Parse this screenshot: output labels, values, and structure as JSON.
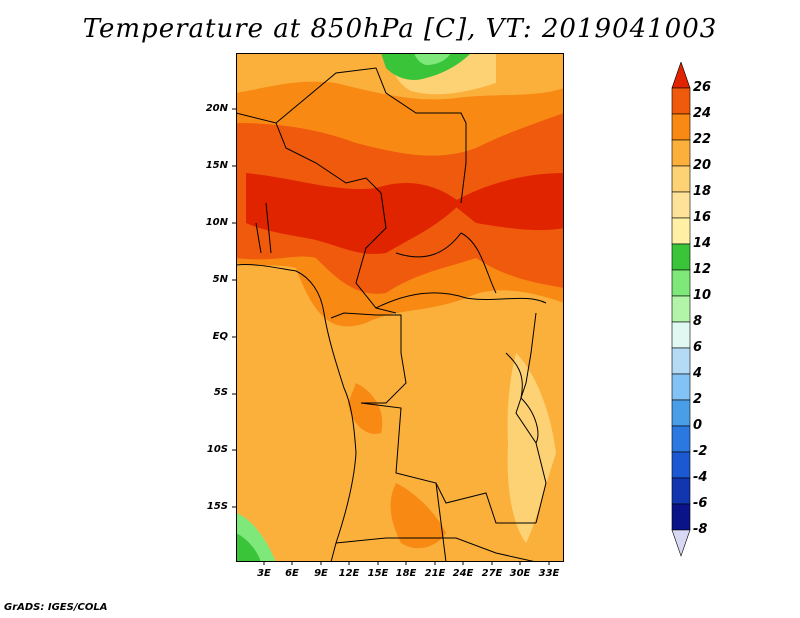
{
  "title": "Temperature at 850hPa [C], VT: 2019041003",
  "footer": "GrADS: IGES/COLA",
  "lat_labels": [
    "20N",
    "15N",
    "10N",
    "5N",
    "EQ",
    "5S",
    "10S",
    "15S"
  ],
  "lon_labels": [
    "3E",
    "6E",
    "9E",
    "12E",
    "15E",
    "18E",
    "21E",
    "24E",
    "27E",
    "30E",
    "33E"
  ],
  "colorbar": {
    "labels": [
      "26",
      "24",
      "22",
      "20",
      "18",
      "16",
      "14",
      "12",
      "10",
      "8",
      "6",
      "4",
      "2",
      "0",
      "-2",
      "-4",
      "-6",
      "-8"
    ],
    "colors": [
      "#e02400",
      "#f05a0c",
      "#f88a14",
      "#fbb03c",
      "#fdd274",
      "#fff0a6",
      "#3ac43a",
      "#7ee87a",
      "#b2f4a8",
      "#e0f8f2",
      "#b4daf6",
      "#82c2f4",
      "#4a9ee8",
      "#2a78e0",
      "#1c58d2",
      "#1236b0",
      "#0a1488",
      "#d8d8f4"
    ]
  },
  "map": {
    "lon_range": [
      0,
      34.5
    ],
    "lat_range": [
      -19.5,
      25
    ],
    "variable": "Temperature at 850hPa",
    "units": "C"
  }
}
